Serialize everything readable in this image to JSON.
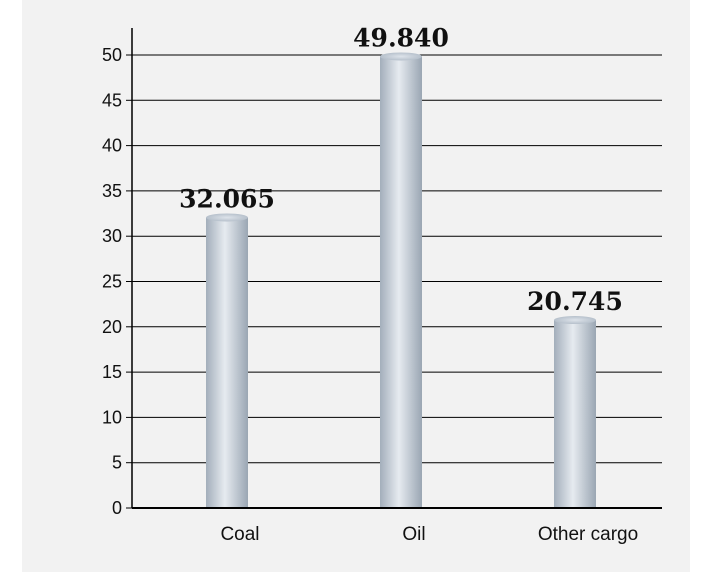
{
  "chart_data": {
    "type": "bar",
    "categories": [
      "Coal",
      "Oil",
      "Other cargo"
    ],
    "values": [
      32.065,
      49.84,
      20.745
    ],
    "data_labels": [
      "32.065",
      "49.840",
      "20.745"
    ],
    "yticks": [
      "0",
      "5",
      "10",
      "15",
      "20",
      "25",
      "30",
      "35",
      "40",
      "45",
      "50"
    ],
    "ylim": [
      0,
      50
    ],
    "grid": true,
    "title": "",
    "xlabel": "",
    "ylabel": ""
  },
  "colors": {
    "background": "#f2f2f2",
    "bar_edge": "#9fabb8",
    "bar_center": "#e4e9ee",
    "axis": "#000000"
  }
}
